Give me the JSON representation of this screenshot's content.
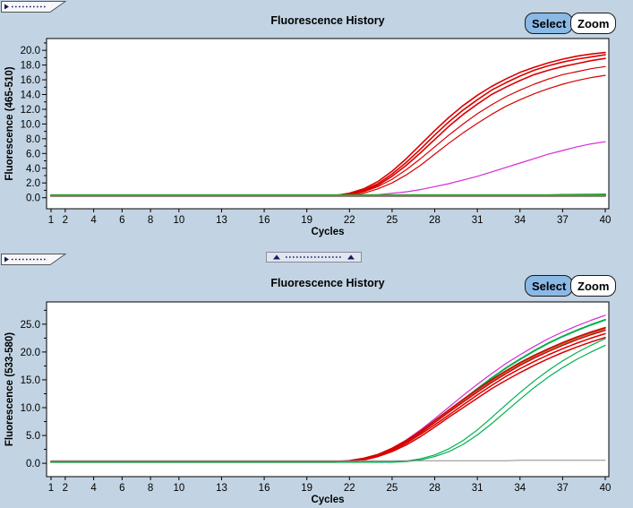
{
  "app": {
    "background_color": "#c2d4e4",
    "accent_button_color": "#8ab9e6"
  },
  "panels": [
    {
      "title": "Fluorescence History",
      "buttons": {
        "select": "Select",
        "zoom": "Zoom"
      }
    },
    {
      "title": "Fluorescence History",
      "buttons": {
        "select": "Select",
        "zoom": "Zoom"
      }
    }
  ],
  "chart_data": [
    {
      "type": "line",
      "title": "Fluorescence History",
      "xlabel": "Cycles",
      "ylabel": "Fluorescence (465-510)",
      "xlim": [
        1,
        40
      ],
      "ylim": [
        -1.5,
        21.6
      ],
      "x_start": 1,
      "x_step": 1,
      "grid": false,
      "legend": "none",
      "x_ticks": [
        1,
        2,
        4,
        6,
        8,
        10,
        13,
        16,
        19,
        22,
        25,
        28,
        31,
        34,
        37,
        40
      ],
      "x_tick_labels": [
        "1",
        "2",
        "4",
        "6",
        "8",
        "10",
        "13",
        "16",
        "19",
        "22",
        "25",
        "28",
        "31",
        "34",
        "37",
        "40"
      ],
      "y_ticks": [
        0,
        2,
        4,
        6,
        8,
        10,
        12,
        14,
        16,
        18,
        20
      ],
      "y_tick_labels": [
        "0.0",
        "2.0",
        "4.0",
        "6.0",
        "8.0",
        "10.0",
        "12.0",
        "14.0",
        "16.0",
        "18.0",
        "20.0"
      ],
      "y_minor_ticks": [
        1,
        3,
        5,
        7,
        9,
        11,
        13,
        15,
        17,
        19,
        21
      ],
      "series": [
        {
          "name": "red-curve-1",
          "color": "#d90000",
          "sw": 1.6,
          "values": [
            0.2,
            0.2,
            0.2,
            0.2,
            0.2,
            0.2,
            0.2,
            0.2,
            0.2,
            0.2,
            0.2,
            0.2,
            0.2,
            0.2,
            0.2,
            0.2,
            0.2,
            0.2,
            0.2,
            0.2,
            0.3,
            0.6,
            1.2,
            2.2,
            3.6,
            5.3,
            7.2,
            9.1,
            10.9,
            12.5,
            13.9,
            15.1,
            16.1,
            17.0,
            17.7,
            18.3,
            18.8,
            19.2,
            19.5,
            19.7
          ]
        },
        {
          "name": "red-curve-2",
          "color": "#d90000",
          "sw": 1.6,
          "values": [
            0.2,
            0.2,
            0.2,
            0.2,
            0.2,
            0.2,
            0.2,
            0.2,
            0.2,
            0.2,
            0.2,
            0.2,
            0.2,
            0.2,
            0.2,
            0.2,
            0.2,
            0.2,
            0.2,
            0.2,
            0.3,
            0.5,
            1.0,
            1.9,
            3.2,
            4.8,
            6.6,
            8.5,
            10.3,
            11.9,
            13.3,
            14.6,
            15.6,
            16.5,
            17.3,
            17.9,
            18.4,
            18.8,
            19.1,
            19.4
          ]
        },
        {
          "name": "red-curve-3",
          "color": "#d90000",
          "sw": 1.6,
          "values": [
            0.25,
            0.25,
            0.25,
            0.25,
            0.25,
            0.25,
            0.25,
            0.25,
            0.25,
            0.25,
            0.25,
            0.25,
            0.25,
            0.25,
            0.25,
            0.25,
            0.25,
            0.25,
            0.25,
            0.25,
            0.3,
            0.5,
            0.9,
            1.7,
            2.9,
            4.4,
            6.1,
            7.9,
            9.7,
            11.3,
            12.7,
            14.0,
            15.0,
            15.9,
            16.7,
            17.3,
            17.8,
            18.2,
            18.6,
            18.9
          ]
        },
        {
          "name": "red-curve-4",
          "color": "#d90000",
          "sw": 1.2,
          "values": [
            0.2,
            0.2,
            0.2,
            0.2,
            0.2,
            0.2,
            0.2,
            0.2,
            0.2,
            0.2,
            0.2,
            0.2,
            0.2,
            0.2,
            0.2,
            0.2,
            0.2,
            0.2,
            0.2,
            0.2,
            0.2,
            0.4,
            0.8,
            1.5,
            2.5,
            3.8,
            5.3,
            6.9,
            8.5,
            10.0,
            11.4,
            12.6,
            13.7,
            14.6,
            15.4,
            16.1,
            16.7,
            17.1,
            17.5,
            17.8
          ]
        },
        {
          "name": "red-curve-5",
          "color": "#d90000",
          "sw": 1.2,
          "values": [
            0.2,
            0.2,
            0.2,
            0.2,
            0.2,
            0.2,
            0.2,
            0.2,
            0.2,
            0.2,
            0.2,
            0.2,
            0.2,
            0.2,
            0.2,
            0.2,
            0.2,
            0.2,
            0.2,
            0.2,
            0.2,
            0.3,
            0.6,
            1.2,
            2.0,
            3.1,
            4.4,
            5.9,
            7.4,
            8.8,
            10.1,
            11.3,
            12.4,
            13.3,
            14.1,
            14.8,
            15.4,
            15.9,
            16.3,
            16.6
          ]
        },
        {
          "name": "magenta-curve",
          "color": "#d62ad6",
          "sw": 1.2,
          "values": [
            0.2,
            0.2,
            0.2,
            0.2,
            0.2,
            0.2,
            0.2,
            0.2,
            0.2,
            0.2,
            0.2,
            0.2,
            0.2,
            0.2,
            0.2,
            0.2,
            0.2,
            0.2,
            0.2,
            0.2,
            0.2,
            0.2,
            0.3,
            0.4,
            0.6,
            0.8,
            1.1,
            1.5,
            1.9,
            2.4,
            2.9,
            3.5,
            4.1,
            4.7,
            5.3,
            5.9,
            6.4,
            6.9,
            7.3,
            7.6
          ]
        },
        {
          "name": "green-flat-1",
          "color": "#1fae3a",
          "sw": 2.2,
          "values": [
            0.35,
            0.35,
            0.35,
            0.35,
            0.35,
            0.35,
            0.35,
            0.35,
            0.35,
            0.35,
            0.35,
            0.35,
            0.35,
            0.35,
            0.35,
            0.35,
            0.35,
            0.35,
            0.35,
            0.35,
            0.35,
            0.35,
            0.35,
            0.35,
            0.35,
            0.35,
            0.35,
            0.35,
            0.35,
            0.35,
            0.35,
            0.35,
            0.35,
            0.35,
            0.35,
            0.35,
            0.38,
            0.4,
            0.42,
            0.45
          ]
        },
        {
          "name": "green-flat-2",
          "color": "#2da02d",
          "sw": 2.0,
          "values": [
            0.3,
            0.3,
            0.3,
            0.3,
            0.3,
            0.3,
            0.3,
            0.3,
            0.3,
            0.3,
            0.3,
            0.3,
            0.3,
            0.3,
            0.3,
            0.3,
            0.3,
            0.3,
            0.3,
            0.3,
            0.3,
            0.3,
            0.3,
            0.3,
            0.3,
            0.3,
            0.3,
            0.3,
            0.3,
            0.3,
            0.3,
            0.3,
            0.3,
            0.3,
            0.3,
            0.3,
            0.3,
            0.3,
            0.3,
            0.3
          ]
        },
        {
          "name": "olive-flat",
          "color": "#8a7434",
          "sw": 1.8,
          "values": [
            0.25,
            0.25,
            0.25,
            0.25,
            0.25,
            0.25,
            0.25,
            0.25,
            0.25,
            0.25,
            0.25,
            0.25,
            0.25,
            0.25,
            0.25,
            0.25,
            0.25,
            0.25,
            0.25,
            0.25,
            0.25,
            0.25,
            0.25,
            0.25,
            0.25,
            0.25,
            0.25,
            0.25,
            0.25,
            0.25,
            0.25,
            0.25,
            0.25,
            0.25,
            0.25,
            0.25,
            0.25,
            0.25,
            0.25,
            0.25
          ]
        },
        {
          "name": "gray-flat",
          "color": "#8c8c8c",
          "sw": 1.2,
          "values": [
            0.15,
            0.15,
            0.15,
            0.15,
            0.15,
            0.15,
            0.15,
            0.15,
            0.15,
            0.15,
            0.15,
            0.15,
            0.15,
            0.15,
            0.15,
            0.15,
            0.15,
            0.15,
            0.15,
            0.15,
            0.15,
            0.15,
            0.15,
            0.15,
            0.15,
            0.15,
            0.15,
            0.15,
            0.15,
            0.15,
            0.15,
            0.15,
            0.15,
            0.15,
            0.15,
            0.15,
            0.15,
            0.15,
            0.15,
            0.15
          ]
        }
      ]
    },
    {
      "type": "line",
      "title": "Fluorescence History",
      "xlabel": "Cycles",
      "ylabel": "Fluorescence (533-580)",
      "xlim": [
        1,
        40
      ],
      "ylim": [
        -2.4,
        29.0
      ],
      "x_start": 1,
      "x_step": 1,
      "grid": false,
      "legend": "none",
      "x_ticks": [
        1,
        2,
        4,
        6,
        8,
        10,
        13,
        16,
        19,
        22,
        25,
        28,
        31,
        34,
        37,
        40
      ],
      "x_tick_labels": [
        "1",
        "2",
        "4",
        "6",
        "8",
        "10",
        "13",
        "16",
        "19",
        "22",
        "25",
        "28",
        "31",
        "34",
        "37",
        "40"
      ],
      "y_ticks": [
        0,
        5,
        10,
        15,
        20,
        25
      ],
      "y_tick_labels": [
        "0.0",
        "5.0",
        "10.0",
        "15.0",
        "20.0",
        "25.0"
      ],
      "y_minor_ticks": [
        2.5,
        7.5,
        12.5,
        17.5,
        22.5,
        27.5
      ],
      "series": [
        {
          "name": "magenta-curve",
          "color": "#d62ad6",
          "sw": 1.2,
          "values": [
            0.3,
            0.3,
            0.3,
            0.3,
            0.3,
            0.3,
            0.3,
            0.3,
            0.3,
            0.3,
            0.3,
            0.3,
            0.3,
            0.3,
            0.3,
            0.3,
            0.3,
            0.3,
            0.3,
            0.3,
            0.3,
            0.5,
            0.9,
            1.6,
            2.7,
            4.2,
            6.0,
            8.0,
            10.1,
            12.2,
            14.2,
            16.1,
            17.9,
            19.5,
            21.0,
            22.4,
            23.6,
            24.7,
            25.7,
            26.6
          ]
        },
        {
          "name": "green-steep-curve",
          "color": "#00b050",
          "sw": 2.0,
          "values": [
            0.25,
            0.25,
            0.25,
            0.25,
            0.25,
            0.25,
            0.25,
            0.25,
            0.25,
            0.25,
            0.25,
            0.25,
            0.25,
            0.25,
            0.25,
            0.25,
            0.25,
            0.25,
            0.25,
            0.25,
            0.25,
            0.4,
            0.8,
            1.4,
            2.4,
            3.8,
            5.5,
            7.4,
            9.4,
            11.4,
            13.4,
            15.3,
            17.1,
            18.7,
            20.2,
            21.6,
            22.8,
            23.9,
            24.9,
            25.8
          ]
        },
        {
          "name": "olive-curve",
          "color": "#8a7434",
          "sw": 1.6,
          "values": [
            0.35,
            0.35,
            0.35,
            0.35,
            0.35,
            0.35,
            0.35,
            0.35,
            0.35,
            0.35,
            0.35,
            0.35,
            0.35,
            0.35,
            0.35,
            0.35,
            0.35,
            0.35,
            0.35,
            0.35,
            0.35,
            0.4,
            0.8,
            1.5,
            2.6,
            4.0,
            5.7,
            7.5,
            9.4,
            11.3,
            13.1,
            14.8,
            16.4,
            17.9,
            19.2,
            20.4,
            21.5,
            22.5,
            23.4,
            24.2
          ]
        },
        {
          "name": "red-curve-1",
          "color": "#d90000",
          "sw": 1.5,
          "values": [
            0.3,
            0.3,
            0.3,
            0.3,
            0.3,
            0.3,
            0.3,
            0.3,
            0.3,
            0.3,
            0.3,
            0.3,
            0.3,
            0.3,
            0.3,
            0.3,
            0.3,
            0.3,
            0.3,
            0.3,
            0.3,
            0.5,
            0.9,
            1.6,
            2.7,
            4.1,
            5.8,
            7.7,
            9.6,
            11.5,
            13.3,
            15.0,
            16.6,
            18.1,
            19.4,
            20.6,
            21.7,
            22.7,
            23.6,
            24.4
          ]
        },
        {
          "name": "red-curve-2",
          "color": "#d90000",
          "sw": 1.5,
          "values": [
            0.25,
            0.25,
            0.25,
            0.25,
            0.25,
            0.25,
            0.25,
            0.25,
            0.25,
            0.25,
            0.25,
            0.25,
            0.25,
            0.25,
            0.25,
            0.25,
            0.25,
            0.25,
            0.25,
            0.25,
            0.25,
            0.4,
            0.8,
            1.5,
            2.5,
            3.9,
            5.5,
            7.3,
            9.2,
            11.0,
            12.8,
            14.5,
            16.1,
            17.6,
            18.9,
            20.1,
            21.2,
            22.2,
            23.1,
            23.9
          ]
        },
        {
          "name": "red-curve-3",
          "color": "#d90000",
          "sw": 1.5,
          "values": [
            0.3,
            0.3,
            0.3,
            0.3,
            0.3,
            0.3,
            0.3,
            0.3,
            0.3,
            0.3,
            0.3,
            0.3,
            0.3,
            0.3,
            0.3,
            0.3,
            0.3,
            0.3,
            0.3,
            0.3,
            0.3,
            0.4,
            0.7,
            1.3,
            2.3,
            3.6,
            5.2,
            6.9,
            8.7,
            10.5,
            12.3,
            14.0,
            15.6,
            17.0,
            18.3,
            19.5,
            20.6,
            21.6,
            22.5,
            23.3
          ]
        },
        {
          "name": "red-curve-4",
          "color": "#d90000",
          "sw": 1.5,
          "values": [
            0.2,
            0.2,
            0.2,
            0.2,
            0.2,
            0.2,
            0.2,
            0.2,
            0.2,
            0.2,
            0.2,
            0.2,
            0.2,
            0.2,
            0.2,
            0.2,
            0.2,
            0.2,
            0.2,
            0.2,
            0.2,
            0.3,
            0.6,
            1.2,
            2.1,
            3.3,
            4.8,
            6.5,
            8.3,
            10.0,
            11.7,
            13.4,
            14.9,
            16.3,
            17.6,
            18.8,
            19.9,
            20.9,
            21.8,
            22.6
          ]
        },
        {
          "name": "green-late-curve-1",
          "color": "#00b050",
          "sw": 1.2,
          "values": [
            0.25,
            0.25,
            0.25,
            0.25,
            0.25,
            0.25,
            0.25,
            0.25,
            0.25,
            0.25,
            0.25,
            0.25,
            0.25,
            0.25,
            0.25,
            0.25,
            0.25,
            0.25,
            0.25,
            0.25,
            0.25,
            0.25,
            0.25,
            0.25,
            0.25,
            0.4,
            0.8,
            1.5,
            2.6,
            4.1,
            6.0,
            8.2,
            10.5,
            12.7,
            14.8,
            16.7,
            18.4,
            19.9,
            21.2,
            22.4
          ]
        },
        {
          "name": "green-late-curve-2",
          "color": "#00b050",
          "sw": 1.2,
          "values": [
            0.2,
            0.2,
            0.2,
            0.2,
            0.2,
            0.2,
            0.2,
            0.2,
            0.2,
            0.2,
            0.2,
            0.2,
            0.2,
            0.2,
            0.2,
            0.2,
            0.2,
            0.2,
            0.2,
            0.2,
            0.2,
            0.2,
            0.2,
            0.2,
            0.2,
            0.3,
            0.6,
            1.2,
            2.1,
            3.4,
            5.1,
            7.1,
            9.3,
            11.5,
            13.6,
            15.5,
            17.2,
            18.7,
            20.0,
            21.2
          ]
        },
        {
          "name": "gray-flat",
          "color": "#8c8c8c",
          "sw": 1.0,
          "values": [
            0.45,
            0.45,
            0.45,
            0.45,
            0.45,
            0.45,
            0.45,
            0.45,
            0.45,
            0.45,
            0.45,
            0.45,
            0.45,
            0.45,
            0.45,
            0.45,
            0.45,
            0.45,
            0.45,
            0.45,
            0.45,
            0.45,
            0.45,
            0.45,
            0.45,
            0.45,
            0.45,
            0.45,
            0.45,
            0.45,
            0.45,
            0.45,
            0.45,
            0.55,
            0.55,
            0.55,
            0.55,
            0.55,
            0.55,
            0.55
          ]
        }
      ]
    }
  ]
}
